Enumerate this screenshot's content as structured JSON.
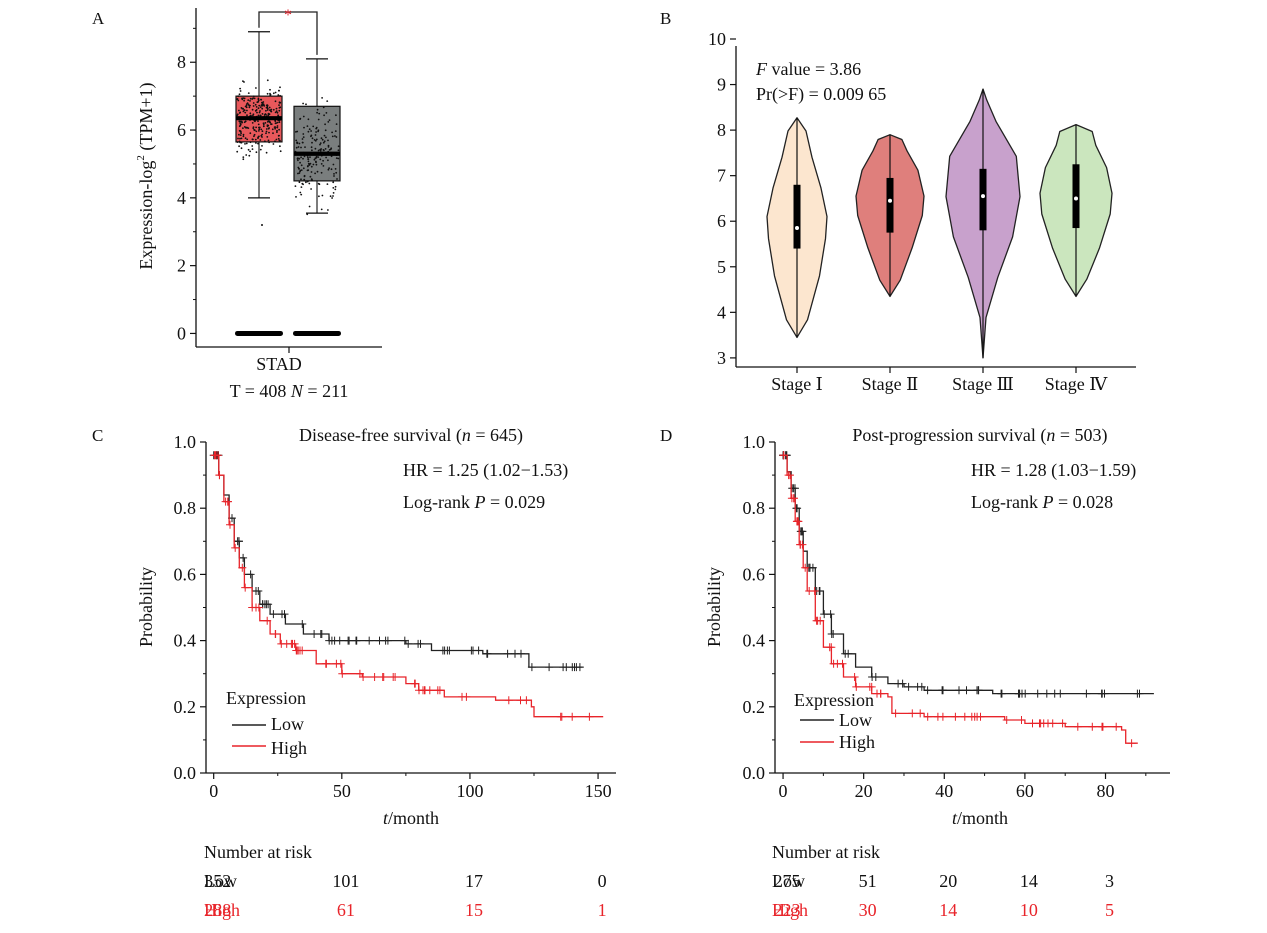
{
  "colors": {
    "tumor_box": "#e8585b",
    "normal_box": "#7a7e7e",
    "sig_star": "#e0202a",
    "low_line": "#222222",
    "high_line": "#e8242a",
    "stage_fills": [
      "#fce6cf",
      "#df7f7c",
      "#c8a1cc",
      "#cbe6be"
    ]
  },
  "chart_data": [
    {
      "type": "box",
      "panel_label": "A",
      "ylabel": "Expression-log² (TPM+1)",
      "ylabel_main": "Expression-log",
      "ylabel_sup": "2",
      "ylabel_tail": " (TPM+1)",
      "ylim": [
        -0.4,
        9.6
      ],
      "yticks": [
        "0",
        "2",
        "4",
        "6",
        "8"
      ],
      "category": "STAD",
      "counts_prefix": "T = 408  ",
      "counts_n": "N",
      "counts_suffix": " = 211",
      "significance": "*",
      "series": [
        {
          "group": "T",
          "q1": 5.65,
          "median": 6.35,
          "q3": 7.0,
          "whisker_low": 4.0,
          "whisker_high": 8.9,
          "color": "#e8585b"
        },
        {
          "group": "N",
          "q1": 4.5,
          "median": 5.3,
          "q3": 6.7,
          "whisker_low": 3.55,
          "whisker_high": 8.1,
          "color": "#7a7e7e"
        }
      ]
    },
    {
      "type": "violin",
      "panel_label": "B",
      "annotation_f_italic": "F",
      "annotation_f_rest": " value = 3.86",
      "annotation_pr": "Pr(>F) = 0.009 65",
      "ylim": [
        2.8,
        10
      ],
      "yticks": [
        "3",
        "4",
        "5",
        "6",
        "7",
        "8",
        "9",
        "10"
      ],
      "categories": [
        "Stage Ⅰ",
        "Stage Ⅱ",
        "Stage Ⅲ",
        "Stage Ⅳ"
      ],
      "series": [
        {
          "min": 3.45,
          "max": 8.27,
          "q1": 5.4,
          "median": 5.85,
          "q3": 6.8
        },
        {
          "min": 4.35,
          "max": 7.9,
          "q1": 5.75,
          "median": 6.45,
          "q3": 6.95
        },
        {
          "min": 3.0,
          "max": 8.9,
          "q1": 5.8,
          "median": 6.55,
          "q3": 7.15
        },
        {
          "min": 4.35,
          "max": 8.12,
          "q1": 5.85,
          "median": 6.5,
          "q3": 7.25
        }
      ]
    },
    {
      "type": "line",
      "panel_label": "C",
      "title_main": "Disease-free survival (",
      "title_n": "n",
      "title_rest": " = 645)",
      "hr": "HR = 1.25 (1.02−1.53)",
      "logrank_prefix": "Log-rank ",
      "logrank_p": "P",
      "logrank_suffix": " = 0.029",
      "ylabel": "Probability",
      "xlabel_t": "t",
      "xlabel_rest": "/month",
      "xlim": [
        -3,
        157
      ],
      "ylim": [
        0,
        1.0
      ],
      "xticks": [
        0,
        50,
        100,
        150
      ],
      "yticks": [
        "0.0",
        "0.2",
        "0.4",
        "0.6",
        "0.8",
        "1.0"
      ],
      "legend_title": "Expression",
      "legend": [
        "Low",
        "High"
      ],
      "series": [
        {
          "name": "Low",
          "x": [
            0,
            2,
            4,
            6,
            8,
            10,
            12,
            15,
            18,
            22,
            28,
            35,
            45,
            55,
            65,
            75,
            85,
            95,
            105,
            115,
            122,
            123,
            140,
            144
          ],
          "y": [
            0.96,
            0.9,
            0.84,
            0.77,
            0.7,
            0.65,
            0.6,
            0.55,
            0.51,
            0.48,
            0.45,
            0.42,
            0.4,
            0.4,
            0.4,
            0.39,
            0.37,
            0.37,
            0.36,
            0.36,
            0.36,
            0.32,
            0.32,
            0.32
          ]
        },
        {
          "name": "High",
          "x": [
            0,
            2,
            4,
            6,
            8,
            10,
            12,
            15,
            18,
            22,
            26,
            32,
            40,
            50,
            58,
            68,
            75,
            80,
            90,
            100,
            110,
            115,
            124,
            125,
            145,
            152
          ],
          "y": [
            0.96,
            0.9,
            0.82,
            0.75,
            0.68,
            0.62,
            0.56,
            0.5,
            0.46,
            0.42,
            0.39,
            0.37,
            0.33,
            0.3,
            0.29,
            0.29,
            0.27,
            0.25,
            0.23,
            0.23,
            0.22,
            0.22,
            0.2,
            0.17,
            0.17,
            0.17
          ]
        }
      ],
      "risk_title": "Number at risk",
      "risk_rows": [
        {
          "label": "Low",
          "values": [
            "352",
            "101",
            "17",
            "0"
          ]
        },
        {
          "label": "High",
          "values": [
            "288",
            "61",
            "15",
            "1"
          ]
        }
      ]
    },
    {
      "type": "line",
      "panel_label": "D",
      "title_main": "Post-progression survival (",
      "title_n": "n",
      "title_rest": " = 503)",
      "hr": "HR = 1.28 (1.03−1.59)",
      "logrank_prefix": "Log-rank ",
      "logrank_p": "P",
      "logrank_suffix": " = 0.028",
      "ylabel": "Probability",
      "xlabel_t": "t",
      "xlabel_rest": "/month",
      "xlim": [
        -2,
        96
      ],
      "ylim": [
        0,
        1.0
      ],
      "xticks": [
        0,
        20,
        40,
        60,
        80
      ],
      "yticks": [
        "0.0",
        "0.2",
        "0.4",
        "0.6",
        "0.8",
        "1.0"
      ],
      "legend_title": "Expression",
      "legend": [
        "Low",
        "High"
      ],
      "series": [
        {
          "name": "Low",
          "x": [
            0,
            1,
            2,
            3,
            4,
            5,
            6,
            8,
            10,
            12,
            15,
            18,
            22,
            26,
            30,
            35,
            40,
            45,
            52,
            60,
            70,
            80,
            92
          ],
          "y": [
            0.96,
            0.91,
            0.86,
            0.8,
            0.73,
            0.67,
            0.62,
            0.55,
            0.48,
            0.42,
            0.36,
            0.32,
            0.29,
            0.27,
            0.26,
            0.25,
            0.25,
            0.25,
            0.24,
            0.24,
            0.24,
            0.24,
            0.24
          ]
        },
        {
          "name": "High",
          "x": [
            0,
            1,
            2,
            3,
            4,
            5,
            6,
            8,
            10,
            12,
            15,
            18,
            22,
            26,
            27,
            35,
            45,
            55,
            60,
            70,
            84,
            85,
            88
          ],
          "y": [
            0.96,
            0.9,
            0.83,
            0.76,
            0.69,
            0.62,
            0.55,
            0.46,
            0.38,
            0.33,
            0.29,
            0.26,
            0.24,
            0.23,
            0.18,
            0.17,
            0.17,
            0.16,
            0.15,
            0.14,
            0.13,
            0.09,
            0.09
          ]
        }
      ],
      "risk_title": "Number at risk",
      "risk_rows": [
        {
          "label": "Low",
          "values": [
            "275",
            "51",
            "20",
            "14",
            "3"
          ]
        },
        {
          "label": "High",
          "values": [
            "223",
            "30",
            "14",
            "10",
            "5"
          ]
        }
      ]
    }
  ]
}
